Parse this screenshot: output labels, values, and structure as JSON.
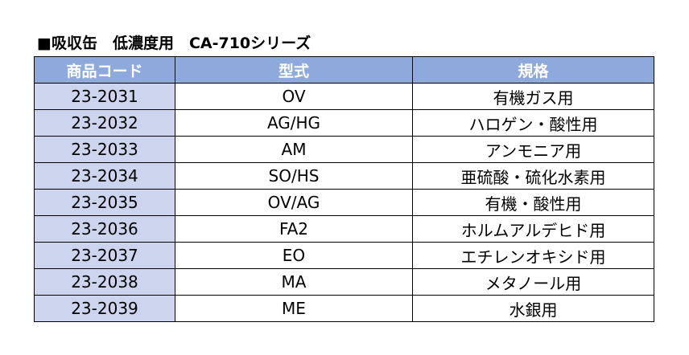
{
  "title": "■吸収缶　低濃度用　CA-710シリーズ",
  "headers": [
    "商品コード",
    "型式",
    "規格"
  ],
  "rows": [
    [
      "23-2031",
      "OV",
      "有機ガス用"
    ],
    [
      "23-2032",
      "AG/HG",
      "ハロゲン・酸性用"
    ],
    [
      "23-2033",
      "AM",
      "アンモニア用"
    ],
    [
      "23-2034",
      "SO/HS",
      "亜硫酸・硫化水素用"
    ],
    [
      "23-2035",
      "OV/AG",
      "有機・酸性用"
    ],
    [
      "23-2036",
      "FA2",
      "ホルムアルデヒド用"
    ],
    [
      "23-2037",
      "EO",
      "エチレンオキシド用"
    ],
    [
      "23-2038",
      "MA",
      "メタノール用"
    ],
    [
      "23-2039",
      "ME",
      "水銀用"
    ]
  ],
  "colors": {
    "header_bg": "#8ea9db",
    "code_bg": "#cdd5ee"
  }
}
